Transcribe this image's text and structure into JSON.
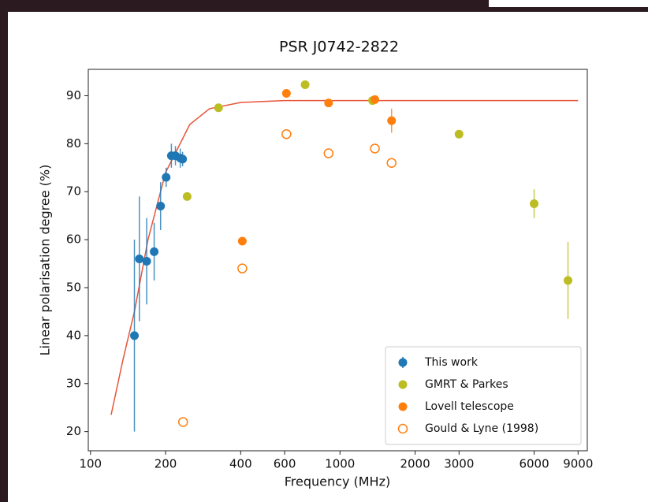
{
  "chart_data": {
    "type": "scatter",
    "title": "PSR J0742-2822",
    "x_label": "Frequency (MHz)",
    "y_label": "Linear polarisation degree (%)",
    "x_scale": "log",
    "xlim": [
      98,
      9800
    ],
    "ylim": [
      16,
      95.5
    ],
    "xticks": [
      100,
      200,
      400,
      600,
      1000,
      2000,
      3000,
      6000,
      9000
    ],
    "yticks": [
      20,
      30,
      40,
      50,
      60,
      70,
      80,
      90
    ],
    "legend": "lower right",
    "series": [
      {
        "name": "This work",
        "color": "#1f77b4",
        "marker": "filled",
        "x": [
          150,
          157,
          168,
          180,
          191,
          201,
          211,
          219,
          229,
          234
        ],
        "values": [
          40,
          56,
          55.5,
          57.5,
          67,
          73,
          77.5,
          77.5,
          77,
          76.8
        ],
        "errors": [
          20,
          13,
          9,
          6,
          5,
          2,
          2.5,
          2,
          2,
          1.5
        ]
      },
      {
        "name": "GMRT & Parkes",
        "color": "#bcbd22",
        "marker": "filled",
        "x": [
          244,
          326,
          725,
          1350,
          3000,
          6000,
          8200
        ],
        "values": [
          69,
          87.5,
          92.3,
          89,
          82,
          67.5,
          51.5
        ],
        "errors": [
          null,
          null,
          null,
          null,
          null,
          3,
          8
        ]
      },
      {
        "name": "Lovell telescope",
        "color": "#ff7f0e",
        "marker": "filled",
        "x": [
          406,
          610,
          900,
          1380,
          1610
        ],
        "values": [
          59.7,
          90.5,
          88.5,
          89.2,
          84.8
        ],
        "errors": [
          null,
          null,
          null,
          null,
          2.5
        ]
      },
      {
        "name": "Gould & Lyne (1998)",
        "color": "#ff7f0e",
        "marker": "open",
        "x": [
          235,
          406,
          610,
          900,
          1380,
          1610
        ],
        "values": [
          22,
          54,
          82,
          78,
          79,
          76
        ]
      }
    ],
    "fit_curve": {
      "color": "#e8553a",
      "x": [
        121,
        135,
        150,
        170,
        200,
        250,
        300,
        400,
        600,
        1000,
        9000
      ],
      "values": [
        23.5,
        35,
        45,
        60,
        74,
        84,
        87.3,
        88.6,
        89,
        89,
        89
      ]
    }
  }
}
